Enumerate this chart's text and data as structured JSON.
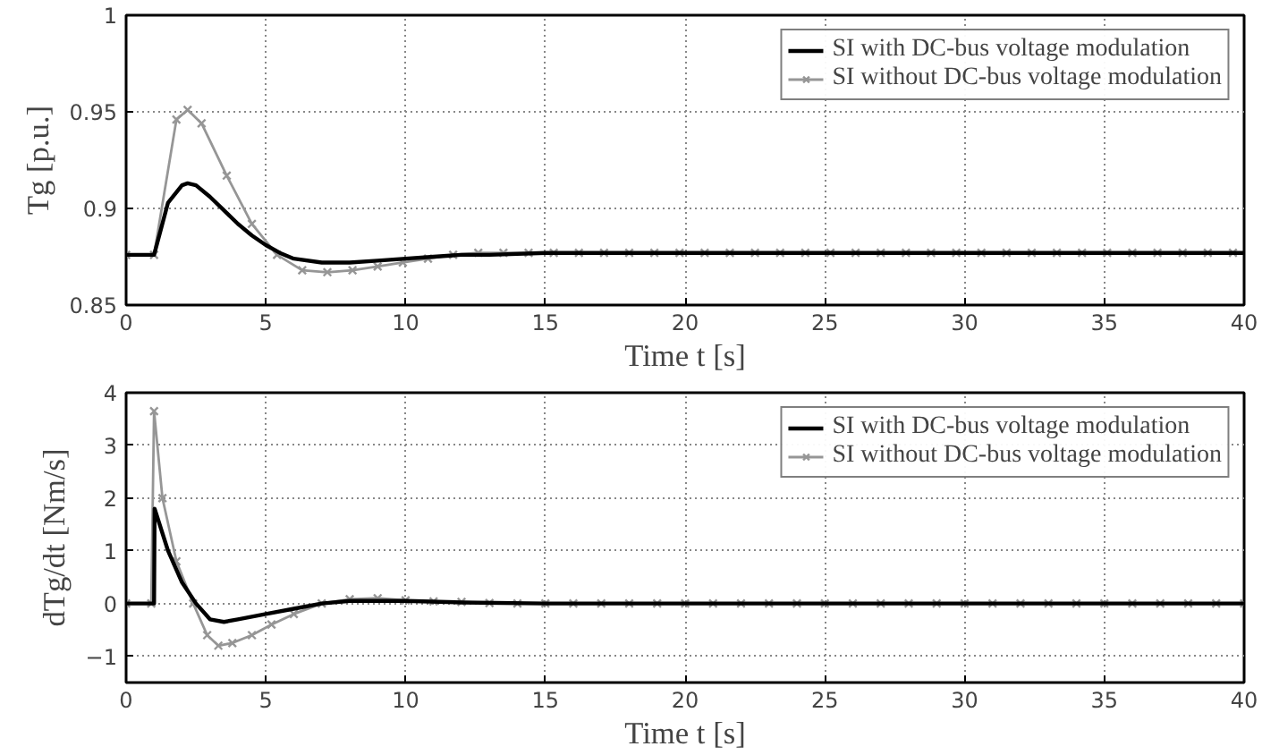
{
  "chart_data": [
    {
      "type": "line",
      "xlabel": "Time t [s]",
      "ylabel": "Tg [p.u.]",
      "xlim": [
        0,
        40
      ],
      "ylim": [
        0.85,
        1
      ],
      "xticks": [
        0,
        5,
        10,
        15,
        20,
        25,
        30,
        35,
        40
      ],
      "yticks": [
        0.85,
        0.9,
        0.95,
        1
      ],
      "grid": true,
      "legend": "top right",
      "series": [
        {
          "name": "SI with DC-bus voltage modulation",
          "color": "#000000",
          "x": [
            0,
            1,
            1.5,
            2,
            2.2,
            2.5,
            3,
            3.5,
            4,
            4.5,
            5,
            5.5,
            6,
            7,
            8,
            9,
            10,
            11,
            12,
            13,
            15,
            20,
            25,
            30,
            35,
            40
          ],
          "values": [
            0.876,
            0.876,
            0.903,
            0.912,
            0.913,
            0.912,
            0.906,
            0.899,
            0.892,
            0.886,
            0.881,
            0.877,
            0.874,
            0.872,
            0.872,
            0.873,
            0.874,
            0.875,
            0.876,
            0.876,
            0.877,
            0.877,
            0.877,
            0.877,
            0.877,
            0.877
          ]
        },
        {
          "name": "SI without DC-bus voltage modulation",
          "color": "#969696",
          "marker": "cross",
          "x": [
            0,
            1,
            1.8,
            2.2,
            2.7,
            3.6,
            4.5,
            5.4,
            6.3,
            7.2,
            8.1,
            9,
            9.9,
            10.8,
            11.7,
            12.6,
            13.5,
            14.4,
            15.3,
            16.2,
            17.1,
            18,
            18.9,
            19.8,
            20.7,
            21.6,
            22.5,
            23.4,
            24.3,
            25.2,
            26.1,
            27,
            27.9,
            28.8,
            29.7,
            30.6,
            31.5,
            32.4,
            33.3,
            34.2,
            35.1,
            36,
            36.9,
            37.8,
            38.7,
            39.6
          ],
          "values": [
            0.876,
            0.876,
            0.946,
            0.951,
            0.944,
            0.917,
            0.892,
            0.876,
            0.868,
            0.867,
            0.868,
            0.87,
            0.872,
            0.874,
            0.876,
            0.877,
            0.877,
            0.877,
            0.877,
            0.877,
            0.877,
            0.877,
            0.877,
            0.877,
            0.877,
            0.877,
            0.877,
            0.877,
            0.877,
            0.877,
            0.877,
            0.877,
            0.877,
            0.877,
            0.877,
            0.877,
            0.877,
            0.877,
            0.877,
            0.877,
            0.877,
            0.877,
            0.877,
            0.877,
            0.877,
            0.877
          ]
        }
      ]
    },
    {
      "type": "line",
      "xlabel": "Time t [s]",
      "ylabel": "dTg/dt [Nm/s]",
      "xlim": [
        0,
        40
      ],
      "ylim": [
        -1.5,
        4
      ],
      "xticks": [
        0,
        5,
        10,
        15,
        20,
        25,
        30,
        35,
        40
      ],
      "yticks": [
        -1,
        0,
        1,
        2,
        3,
        4
      ],
      "grid": true,
      "legend": "top right",
      "series": [
        {
          "name": "SI with DC-bus voltage modulation",
          "color": "#000000",
          "x": [
            0,
            1,
            1.02,
            1.5,
            2,
            2.5,
            3,
            3.5,
            4,
            5,
            6,
            7,
            8,
            9,
            10,
            12,
            15,
            20,
            25,
            30,
            35,
            40
          ],
          "values": [
            0,
            0,
            1.8,
            1.0,
            0.4,
            0,
            -0.3,
            -0.35,
            -0.3,
            -0.2,
            -0.1,
            0,
            0.05,
            0.05,
            0.05,
            0.02,
            0,
            0,
            0,
            0,
            0,
            0
          ]
        },
        {
          "name": "SI without DC-bus voltage modulation",
          "color": "#969696",
          "marker": "cross",
          "x": [
            0,
            0.9,
            1,
            1.3,
            1.8,
            2.4,
            2.9,
            3.3,
            3.8,
            4.5,
            5.2,
            6,
            7,
            8,
            9,
            10,
            11,
            12,
            13,
            14,
            15,
            16,
            17,
            18,
            19,
            20,
            21,
            22,
            23,
            24,
            25,
            26,
            27,
            28,
            29,
            30,
            31,
            32,
            33,
            34,
            35,
            36,
            37,
            38,
            39,
            40
          ],
          "values": [
            0,
            0,
            3.65,
            2.0,
            0.8,
            0,
            -0.6,
            -0.8,
            -0.75,
            -0.6,
            -0.4,
            -0.2,
            0,
            0.08,
            0.1,
            0.06,
            0.04,
            0.03,
            0.01,
            0,
            0,
            0,
            0,
            0,
            0,
            0,
            0,
            0,
            0,
            0,
            0,
            0,
            0,
            0,
            0,
            0,
            0,
            0,
            0,
            0,
            0,
            0,
            0,
            0,
            0,
            0
          ]
        }
      ]
    }
  ]
}
